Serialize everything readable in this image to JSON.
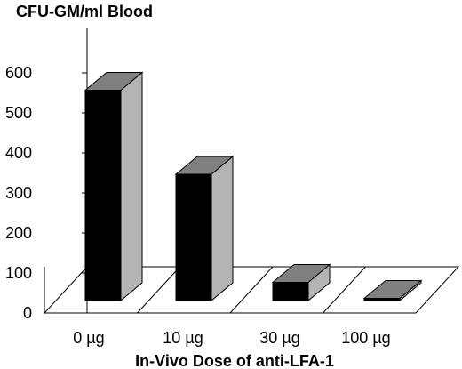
{
  "chart_data": {
    "type": "bar",
    "style": "3d",
    "ylabel": "CFU-GM/ml Blood",
    "xlabel": "In-Vivo Dose of anti-LFA-1",
    "categories": [
      "0 µg",
      "10 µg",
      "30 µg",
      "100 µg"
    ],
    "values": [
      570,
      360,
      90,
      50
    ],
    "ylim": [
      0,
      600
    ],
    "yticks": [
      0,
      100,
      200,
      300,
      400,
      500,
      600
    ],
    "grid": false,
    "colors": {
      "bar_front": "#000000",
      "bar_side": "#b4b4b4",
      "bar_top": "#808080"
    }
  }
}
